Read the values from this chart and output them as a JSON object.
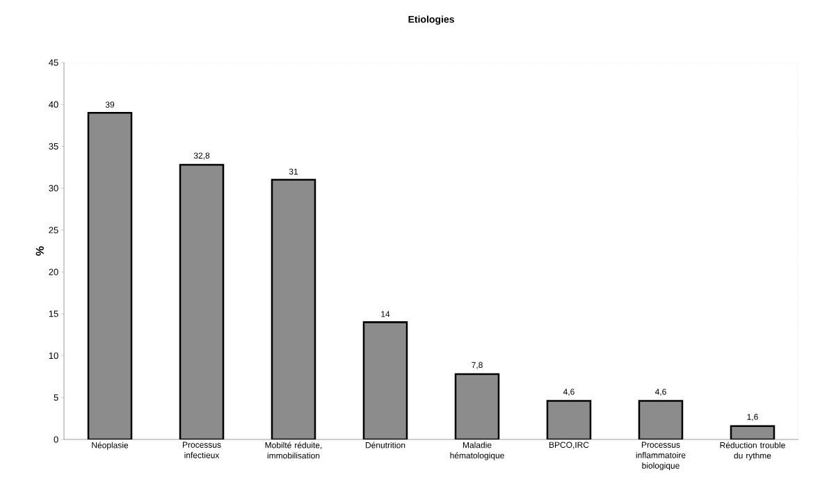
{
  "chart_data": {
    "type": "bar",
    "title": "Etiologies",
    "ylabel": "%",
    "categories": [
      "Néoplasie",
      "Processus infectieux",
      "Mobilté réduite, immobilisation",
      "Dénutrition",
      "Maladie hématologique",
      "BPCO,IRC",
      "Processus inflammatoire biologique",
      "Réduction trouble du rythme"
    ],
    "values": [
      39,
      32.8,
      31,
      14,
      7.8,
      4.6,
      4.6,
      1.6
    ],
    "value_labels": [
      "39",
      "32,8",
      "31",
      "14",
      "7,8",
      "4,6",
      "4,6",
      "1,6"
    ],
    "color": "#8c8c8c",
    "ylim": [
      0,
      45
    ],
    "yticks": [
      0,
      5,
      10,
      15,
      20,
      25,
      30,
      35,
      40,
      45
    ]
  }
}
